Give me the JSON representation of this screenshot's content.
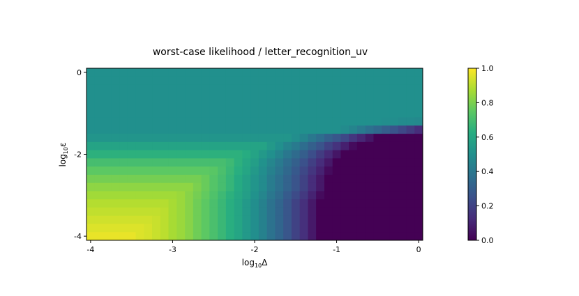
{
  "chart_data": {
    "type": "heatmap",
    "title": "worst-case likelihood / letter_recognition_uv",
    "xlabel": "log10Δ",
    "ylabel": "log10ε",
    "xlabel_parts": {
      "prefix": "log",
      "sub": "10",
      "suffix": "Δ"
    },
    "ylabel_parts": {
      "prefix": "log",
      "sub": "10",
      "suffix": "ε"
    },
    "x": [
      -4.0,
      -3.9,
      -3.8,
      -3.7,
      -3.6,
      -3.5,
      -3.4,
      -3.3,
      -3.2,
      -3.1,
      -3.0,
      -2.9,
      -2.8,
      -2.7,
      -2.6,
      -2.5,
      -2.4,
      -2.3,
      -2.2,
      -2.1,
      -2.0,
      -1.9,
      -1.8,
      -1.7,
      -1.6,
      -1.5,
      -1.4,
      -1.3,
      -1.2,
      -1.1,
      -1.0,
      -0.9,
      -0.8,
      -0.7,
      -0.6,
      -0.5,
      -0.4,
      -0.3,
      -0.2,
      -0.1,
      0.0
    ],
    "y": [
      0.0,
      -0.2,
      -0.4,
      -0.6,
      -0.8,
      -1.0,
      -1.2,
      -1.4,
      -1.6,
      -1.8,
      -2.0,
      -2.2,
      -2.4,
      -2.6,
      -2.8,
      -3.0,
      -3.2,
      -3.4,
      -3.6,
      -3.8,
      -4.0
    ],
    "xlim": [
      -4.05,
      0.05
    ],
    "ylim": [
      -4.1,
      0.1
    ],
    "xticks": [
      {
        "value": -4,
        "label": "-4"
      },
      {
        "value": -3,
        "label": "-3"
      },
      {
        "value": -2,
        "label": "-2"
      },
      {
        "value": -1,
        "label": "-1"
      },
      {
        "value": 0,
        "label": "0"
      }
    ],
    "yticks": [
      {
        "value": 0,
        "label": "0"
      },
      {
        "value": -2,
        "label": "-2"
      },
      {
        "value": -4,
        "label": "-4"
      }
    ],
    "colormap": "viridis",
    "colorbar": {
      "range": [
        0.0,
        1.0
      ],
      "ticks": [
        {
          "value": 0.0,
          "label": "0.0"
        },
        {
          "value": 0.2,
          "label": "0.2"
        },
        {
          "value": 0.4,
          "label": "0.4"
        },
        {
          "value": 0.6,
          "label": "0.6"
        },
        {
          "value": 0.8,
          "label": "0.8"
        },
        {
          "value": 1.0,
          "label": "1.0"
        }
      ]
    },
    "grid": false,
    "values": [
      [
        0.5,
        0.5,
        0.5,
        0.5,
        0.5,
        0.5,
        0.5,
        0.5,
        0.5,
        0.5,
        0.5,
        0.5,
        0.5,
        0.5,
        0.5,
        0.5,
        0.5,
        0.5,
        0.5,
        0.5,
        0.5,
        0.5,
        0.5,
        0.5,
        0.5,
        0.5,
        0.5,
        0.5,
        0.5,
        0.5,
        0.5,
        0.5,
        0.5,
        0.5,
        0.5,
        0.5,
        0.5,
        0.5,
        0.5,
        0.5,
        0.5
      ],
      [
        0.5,
        0.5,
        0.5,
        0.5,
        0.5,
        0.5,
        0.5,
        0.5,
        0.5,
        0.5,
        0.5,
        0.5,
        0.5,
        0.5,
        0.5,
        0.5,
        0.5,
        0.5,
        0.5,
        0.5,
        0.5,
        0.5,
        0.5,
        0.5,
        0.5,
        0.5,
        0.5,
        0.5,
        0.5,
        0.5,
        0.5,
        0.5,
        0.5,
        0.5,
        0.5,
        0.5,
        0.5,
        0.5,
        0.5,
        0.5,
        0.5
      ],
      [
        0.5,
        0.5,
        0.5,
        0.5,
        0.5,
        0.5,
        0.5,
        0.5,
        0.5,
        0.5,
        0.5,
        0.5,
        0.5,
        0.5,
        0.5,
        0.5,
        0.5,
        0.5,
        0.5,
        0.5,
        0.5,
        0.5,
        0.5,
        0.5,
        0.5,
        0.5,
        0.5,
        0.5,
        0.5,
        0.5,
        0.5,
        0.5,
        0.5,
        0.5,
        0.5,
        0.5,
        0.5,
        0.5,
        0.5,
        0.5,
        0.5
      ],
      [
        0.5,
        0.5,
        0.5,
        0.5,
        0.5,
        0.5,
        0.5,
        0.5,
        0.5,
        0.5,
        0.5,
        0.5,
        0.5,
        0.5,
        0.5,
        0.5,
        0.5,
        0.5,
        0.5,
        0.5,
        0.5,
        0.5,
        0.5,
        0.5,
        0.5,
        0.5,
        0.5,
        0.5,
        0.5,
        0.5,
        0.5,
        0.5,
        0.5,
        0.5,
        0.5,
        0.5,
        0.5,
        0.5,
        0.5,
        0.5,
        0.5
      ],
      [
        0.5,
        0.5,
        0.5,
        0.5,
        0.5,
        0.5,
        0.5,
        0.5,
        0.5,
        0.5,
        0.5,
        0.5,
        0.5,
        0.5,
        0.5,
        0.5,
        0.5,
        0.5,
        0.5,
        0.5,
        0.5,
        0.5,
        0.5,
        0.5,
        0.5,
        0.5,
        0.5,
        0.5,
        0.5,
        0.5,
        0.5,
        0.5,
        0.5,
        0.5,
        0.5,
        0.5,
        0.5,
        0.5,
        0.5,
        0.5,
        0.5
      ],
      [
        0.5,
        0.5,
        0.5,
        0.5,
        0.5,
        0.5,
        0.5,
        0.5,
        0.5,
        0.5,
        0.5,
        0.5,
        0.5,
        0.5,
        0.5,
        0.5,
        0.5,
        0.5,
        0.5,
        0.5,
        0.5,
        0.5,
        0.5,
        0.5,
        0.5,
        0.5,
        0.5,
        0.5,
        0.5,
        0.5,
        0.5,
        0.5,
        0.5,
        0.5,
        0.5,
        0.5,
        0.5,
        0.5,
        0.5,
        0.5,
        0.5
      ],
      [
        0.5,
        0.5,
        0.5,
        0.5,
        0.5,
        0.5,
        0.5,
        0.5,
        0.5,
        0.5,
        0.5,
        0.5,
        0.5,
        0.5,
        0.5,
        0.5,
        0.5,
        0.5,
        0.5,
        0.5,
        0.5,
        0.5,
        0.5,
        0.5,
        0.5,
        0.5,
        0.5,
        0.5,
        0.5,
        0.5,
        0.5,
        0.5,
        0.5,
        0.5,
        0.5,
        0.5,
        0.49,
        0.49,
        0.48,
        0.48,
        0.47
      ],
      [
        0.5,
        0.5,
        0.5,
        0.5,
        0.5,
        0.5,
        0.5,
        0.5,
        0.5,
        0.5,
        0.5,
        0.5,
        0.5,
        0.5,
        0.5,
        0.5,
        0.5,
        0.5,
        0.5,
        0.5,
        0.5,
        0.5,
        0.5,
        0.5,
        0.5,
        0.5,
        0.5,
        0.5,
        0.5,
        0.5,
        0.5,
        0.48,
        0.45,
        0.41,
        0.37,
        0.34,
        0.3,
        0.26,
        0.22,
        0.18,
        0.13
      ],
      [
        0.52,
        0.52,
        0.52,
        0.52,
        0.52,
        0.52,
        0.52,
        0.52,
        0.52,
        0.52,
        0.52,
        0.52,
        0.52,
        0.52,
        0.52,
        0.52,
        0.52,
        0.52,
        0.52,
        0.52,
        0.52,
        0.52,
        0.52,
        0.52,
        0.52,
        0.49,
        0.45,
        0.4,
        0.36,
        0.31,
        0.27,
        0.22,
        0.16,
        0.11,
        0.06,
        0,
        0,
        0,
        0,
        0,
        0
      ],
      [
        0.58,
        0.58,
        0.58,
        0.58,
        0.58,
        0.58,
        0.58,
        0.58,
        0.58,
        0.58,
        0.58,
        0.58,
        0.58,
        0.58,
        0.58,
        0.58,
        0.58,
        0.58,
        0.58,
        0.58,
        0.58,
        0.58,
        0.54,
        0.5,
        0.45,
        0.41,
        0.36,
        0.31,
        0.26,
        0.2,
        0.15,
        0.09,
        0.03,
        0,
        0,
        0,
        0,
        0,
        0,
        0,
        0
      ],
      [
        0.64,
        0.64,
        0.64,
        0.64,
        0.64,
        0.64,
        0.64,
        0.64,
        0.64,
        0.64,
        0.64,
        0.64,
        0.64,
        0.64,
        0.64,
        0.64,
        0.64,
        0.64,
        0.64,
        0.62,
        0.58,
        0.54,
        0.5,
        0.45,
        0.4,
        0.35,
        0.3,
        0.24,
        0.18,
        0.12,
        0.06,
        0,
        0,
        0,
        0,
        0,
        0,
        0,
        0,
        0,
        0
      ],
      [
        0.7,
        0.7,
        0.7,
        0.7,
        0.7,
        0.7,
        0.7,
        0.7,
        0.7,
        0.7,
        0.7,
        0.7,
        0.7,
        0.7,
        0.7,
        0.7,
        0.7,
        0.68,
        0.64,
        0.6,
        0.56,
        0.51,
        0.46,
        0.41,
        0.36,
        0.31,
        0.25,
        0.19,
        0.13,
        0.07,
        0,
        0,
        0,
        0,
        0,
        0,
        0,
        0,
        0,
        0,
        0
      ],
      [
        0.75,
        0.75,
        0.75,
        0.75,
        0.75,
        0.75,
        0.75,
        0.75,
        0.75,
        0.75,
        0.75,
        0.75,
        0.75,
        0.75,
        0.75,
        0.74,
        0.71,
        0.67,
        0.63,
        0.59,
        0.54,
        0.49,
        0.44,
        0.39,
        0.34,
        0.28,
        0.22,
        0.16,
        0.1,
        0.03,
        0,
        0,
        0,
        0,
        0,
        0,
        0,
        0,
        0,
        0,
        0
      ],
      [
        0.79,
        0.79,
        0.79,
        0.79,
        0.79,
        0.79,
        0.79,
        0.79,
        0.79,
        0.79,
        0.79,
        0.79,
        0.79,
        0.79,
        0.77,
        0.73,
        0.7,
        0.66,
        0.61,
        0.57,
        0.52,
        0.48,
        0.42,
        0.37,
        0.32,
        0.26,
        0.2,
        0.13,
        0.07,
        0,
        0,
        0,
        0,
        0,
        0,
        0,
        0,
        0,
        0,
        0,
        0
      ],
      [
        0.83,
        0.83,
        0.83,
        0.83,
        0.83,
        0.83,
        0.83,
        0.83,
        0.83,
        0.83,
        0.83,
        0.83,
        0.83,
        0.8,
        0.77,
        0.73,
        0.7,
        0.66,
        0.61,
        0.57,
        0.52,
        0.48,
        0.42,
        0.37,
        0.32,
        0.26,
        0.2,
        0.13,
        0.07,
        0,
        0,
        0,
        0,
        0,
        0,
        0,
        0,
        0,
        0,
        0,
        0
      ],
      [
        0.86,
        0.86,
        0.86,
        0.86,
        0.86,
        0.86,
        0.86,
        0.86,
        0.86,
        0.86,
        0.86,
        0.85,
        0.82,
        0.79,
        0.76,
        0.72,
        0.68,
        0.64,
        0.6,
        0.56,
        0.51,
        0.46,
        0.4,
        0.35,
        0.29,
        0.23,
        0.17,
        0.1,
        0.03,
        0,
        0,
        0,
        0,
        0,
        0,
        0,
        0,
        0,
        0,
        0,
        0
      ],
      [
        0.89,
        0.89,
        0.89,
        0.89,
        0.89,
        0.89,
        0.89,
        0.89,
        0.89,
        0.89,
        0.87,
        0.85,
        0.82,
        0.78,
        0.75,
        0.71,
        0.67,
        0.63,
        0.59,
        0.54,
        0.49,
        0.44,
        0.38,
        0.33,
        0.27,
        0.2,
        0.14,
        0.07,
        0,
        0,
        0,
        0,
        0,
        0,
        0,
        0,
        0,
        0,
        0,
        0,
        0
      ],
      [
        0.91,
        0.91,
        0.91,
        0.91,
        0.91,
        0.91,
        0.91,
        0.91,
        0.91,
        0.9,
        0.87,
        0.85,
        0.82,
        0.78,
        0.75,
        0.71,
        0.67,
        0.63,
        0.59,
        0.54,
        0.49,
        0.44,
        0.38,
        0.33,
        0.27,
        0.2,
        0.14,
        0.07,
        0,
        0,
        0,
        0,
        0,
        0,
        0,
        0,
        0,
        0,
        0,
        0,
        0
      ],
      [
        0.93,
        0.93,
        0.93,
        0.93,
        0.93,
        0.93,
        0.93,
        0.93,
        0.92,
        0.9,
        0.87,
        0.85,
        0.82,
        0.78,
        0.75,
        0.71,
        0.67,
        0.63,
        0.59,
        0.54,
        0.49,
        0.44,
        0.38,
        0.33,
        0.27,
        0.2,
        0.14,
        0.07,
        0,
        0,
        0,
        0,
        0,
        0,
        0,
        0,
        0,
        0,
        0,
        0,
        0
      ],
      [
        0.95,
        0.95,
        0.95,
        0.95,
        0.95,
        0.95,
        0.95,
        0.94,
        0.92,
        0.9,
        0.87,
        0.85,
        0.82,
        0.78,
        0.75,
        0.71,
        0.67,
        0.63,
        0.59,
        0.54,
        0.49,
        0.44,
        0.38,
        0.33,
        0.27,
        0.2,
        0.14,
        0.07,
        0,
        0,
        0,
        0,
        0,
        0,
        0,
        0,
        0,
        0,
        0,
        0,
        0
      ],
      [
        0.97,
        0.97,
        0.97,
        0.97,
        0.97,
        0.97,
        0.95,
        0.94,
        0.92,
        0.9,
        0.87,
        0.85,
        0.82,
        0.78,
        0.75,
        0.71,
        0.67,
        0.63,
        0.59,
        0.54,
        0.49,
        0.44,
        0.38,
        0.33,
        0.27,
        0.2,
        0.14,
        0.07,
        0,
        0,
        0,
        0,
        0,
        0,
        0,
        0,
        0,
        0,
        0,
        0,
        0
      ]
    ]
  }
}
